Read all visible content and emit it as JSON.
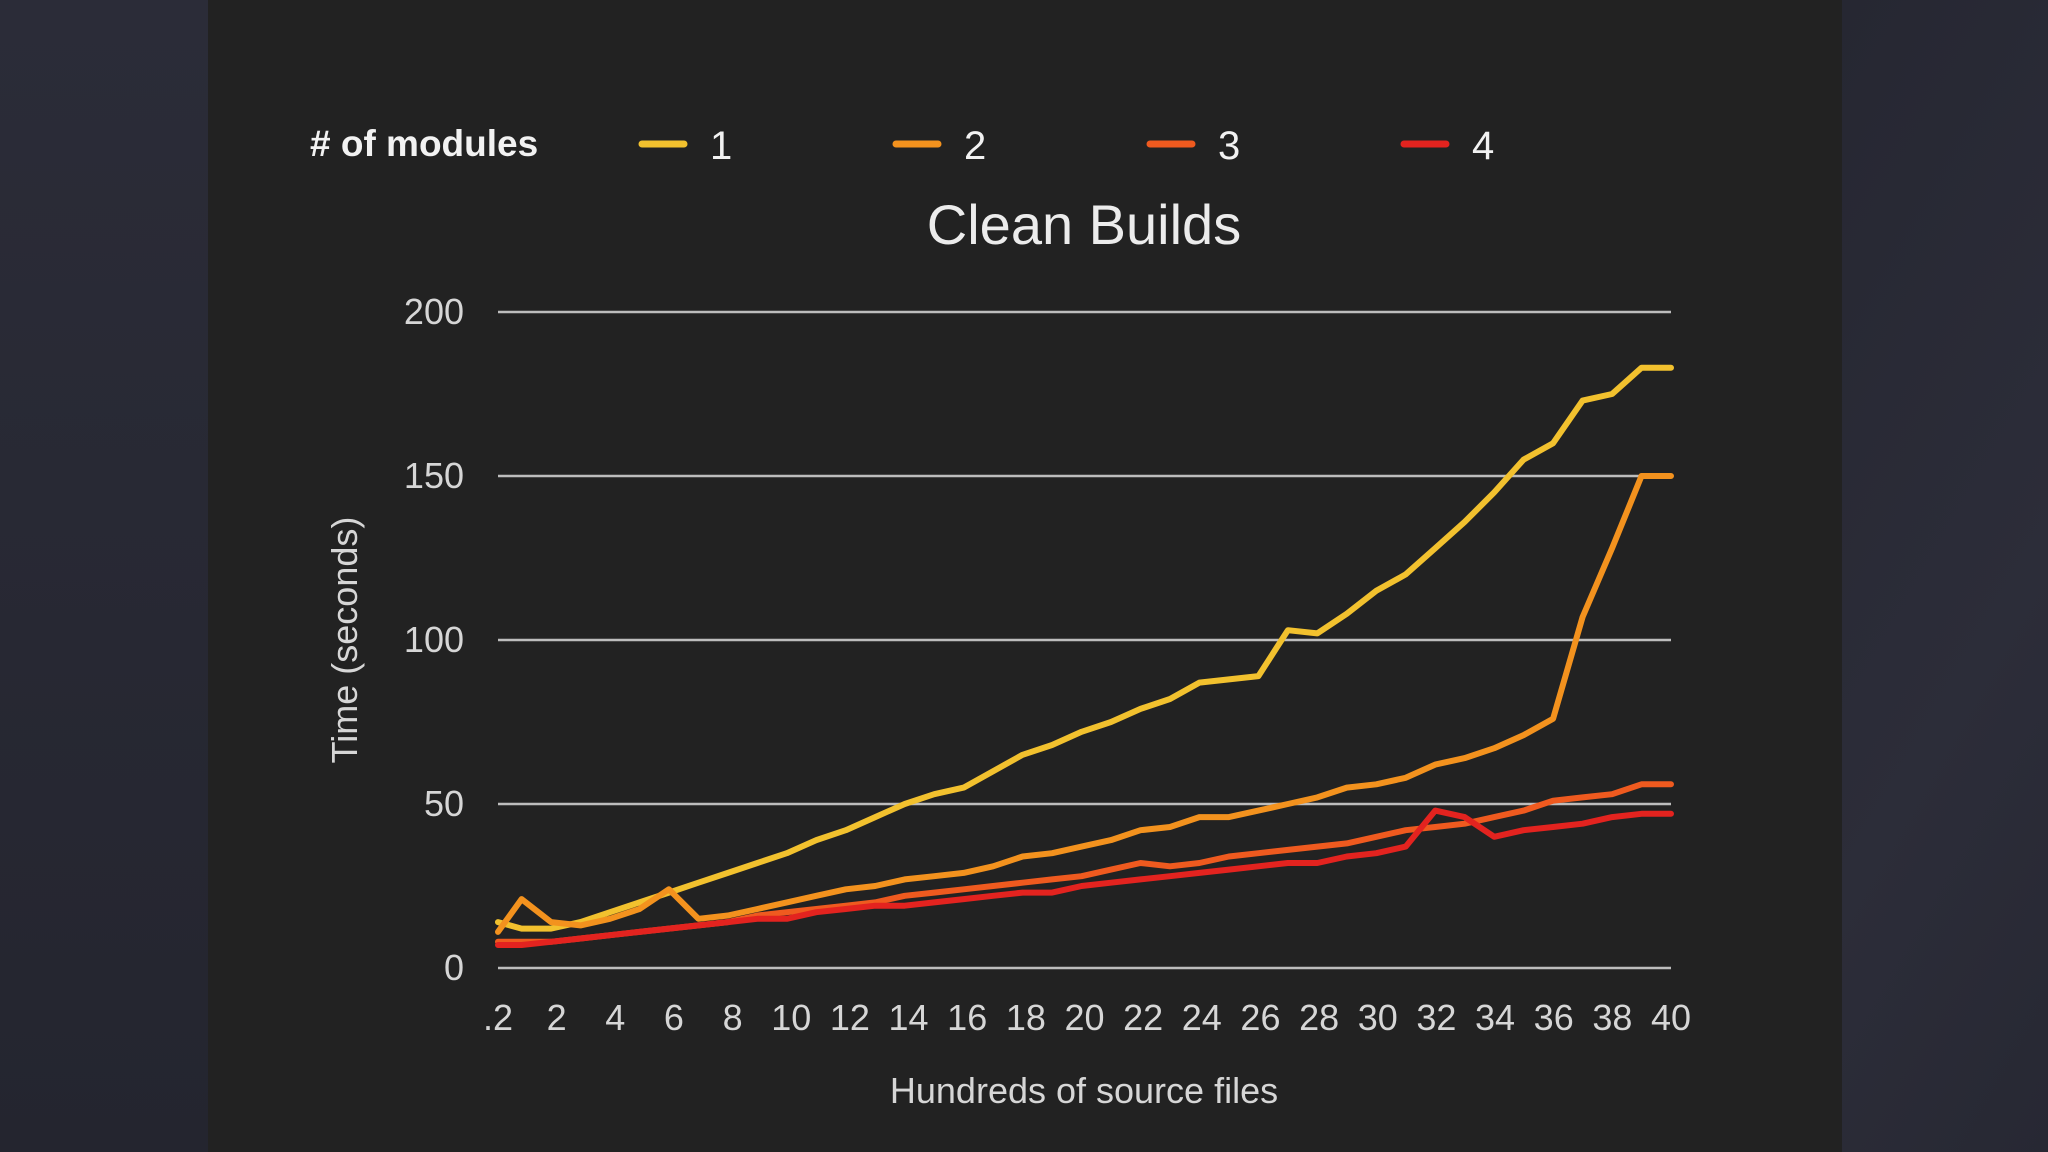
{
  "chart_data": {
    "type": "line",
    "title": "Clean Builds",
    "legend_title": "# of modules",
    "legend_position": "top",
    "xlabel": "Hundreds of source files",
    "ylabel": "Time (seconds)",
    "ylim": [
      0,
      200
    ],
    "y_ticks": [
      "0",
      "50",
      "100",
      "150",
      "200"
    ],
    "x_tick_labels": [
      ".2",
      "2",
      "4",
      "6",
      "8",
      "10",
      "12",
      "14",
      "16",
      "18",
      "20",
      "22",
      "24",
      "26",
      "28",
      "30",
      "32",
      "34",
      "36",
      "38",
      "40"
    ],
    "grid": true,
    "x": [
      0.2,
      1,
      2,
      3,
      4,
      5,
      6,
      7,
      8,
      9,
      10,
      11,
      12,
      13,
      14,
      15,
      16,
      17,
      18,
      19,
      20,
      21,
      22,
      23,
      24,
      25,
      26,
      27,
      28,
      29,
      30,
      31,
      32,
      33,
      34,
      35,
      36,
      37,
      38,
      39,
      40
    ],
    "series": [
      {
        "name": "1",
        "color": "#f2c12e",
        "values": [
          14,
          12,
          12,
          14,
          17,
          20,
          23,
          26,
          29,
          32,
          35,
          39,
          42,
          46,
          50,
          53,
          55,
          60,
          65,
          68,
          72,
          75,
          79,
          82,
          87,
          88,
          89,
          103,
          102,
          108,
          115,
          120,
          128,
          136,
          145,
          155,
          160,
          173,
          175,
          183,
          183
        ]
      },
      {
        "name": "2",
        "color": "#f3921e",
        "values": [
          11,
          21,
          14,
          13,
          15,
          18,
          24,
          15,
          16,
          18,
          20,
          22,
          24,
          25,
          27,
          28,
          29,
          31,
          34,
          35,
          37,
          39,
          42,
          43,
          46,
          46,
          48,
          50,
          52,
          55,
          56,
          58,
          62,
          64,
          67,
          71,
          76,
          107,
          128,
          150,
          150
        ]
      },
      {
        "name": "3",
        "color": "#ef5a1f",
        "values": [
          8,
          8,
          8,
          9,
          10,
          11,
          12,
          13,
          14,
          16,
          17,
          18,
          19,
          20,
          22,
          23,
          24,
          25,
          26,
          27,
          28,
          30,
          32,
          31,
          32,
          34,
          35,
          36,
          37,
          38,
          40,
          42,
          43,
          44,
          46,
          48,
          51,
          52,
          53,
          56,
          56
        ]
      },
      {
        "name": "4",
        "color": "#e3231f",
        "values": [
          7,
          7,
          8,
          9,
          10,
          11,
          12,
          13,
          14,
          15,
          15,
          17,
          18,
          19,
          19,
          20,
          21,
          22,
          23,
          23,
          25,
          26,
          27,
          28,
          29,
          30,
          31,
          32,
          32,
          34,
          35,
          37,
          48,
          46,
          40,
          42,
          43,
          44,
          46,
          47,
          47
        ]
      }
    ]
  }
}
